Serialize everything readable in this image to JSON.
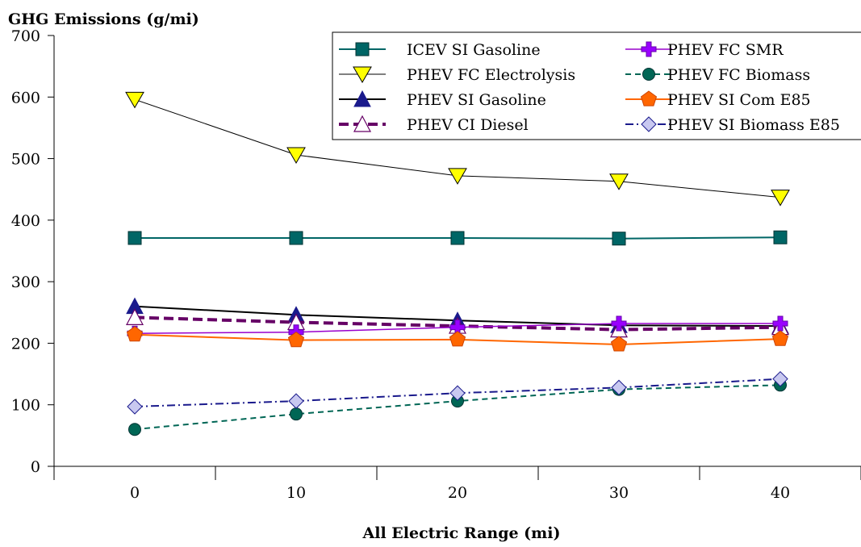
{
  "chart_data": {
    "type": "line",
    "title": "",
    "ylabel": "GHG Emissions (g/mi)",
    "xlabel": "All Electric Range (mi)",
    "x": [
      0,
      10,
      20,
      30,
      40
    ],
    "xticks": [
      "0",
      "10",
      "20",
      "30",
      "40"
    ],
    "ylim": [
      0,
      700
    ],
    "yticks": [
      "0",
      "100",
      "200",
      "300",
      "400",
      "500",
      "600",
      "700"
    ],
    "grid": false,
    "legend_position": "top-right",
    "series": [
      {
        "name": "ICEV SI Gasoline",
        "values": [
          371,
          371,
          371,
          370,
          372
        ],
        "color": "#006666",
        "marker": "square",
        "fill": "#006666",
        "dash": "",
        "width": 2
      },
      {
        "name": "PHEV FC Electrolysis",
        "values": [
          596,
          506,
          472,
          463,
          437
        ],
        "color": "#000000",
        "marker": "triangle-down",
        "fill": "#ffff00",
        "dash": "",
        "width": 1
      },
      {
        "name": "PHEV SI Gasoline",
        "values": [
          260,
          246,
          237,
          229,
          228
        ],
        "color": "#000000",
        "marker": "triangle-up",
        "fill": "#1a1a8c",
        "dash": "",
        "width": 2
      },
      {
        "name": "PHEV CI Diesel",
        "values": [
          242,
          234,
          228,
          222,
          226
        ],
        "color": "#660066",
        "marker": "triangle-up-open",
        "fill": "#ffffff",
        "dash": "12,6",
        "width": 4
      },
      {
        "name": "PHEV FC SMR",
        "values": [
          216,
          218,
          226,
          232,
          232
        ],
        "color": "#9900cc",
        "marker": "plus-square",
        "fill": "#9900ff",
        "dash": "",
        "width": 1.5
      },
      {
        "name": "PHEV FC Biomass",
        "values": [
          60,
          85,
          106,
          125,
          132
        ],
        "color": "#006655",
        "marker": "circle",
        "fill": "#006655",
        "dash": "7,5",
        "width": 2
      },
      {
        "name": "PHEV SI Com E85",
        "values": [
          214,
          205,
          206,
          198,
          207
        ],
        "color": "#ff6600",
        "marker": "pentagon",
        "fill": "#ff6600",
        "dash": "",
        "width": 2
      },
      {
        "name": "PHEV SI Biomass E85",
        "values": [
          97,
          106,
          119,
          128,
          142
        ],
        "color": "#1a1a8c",
        "marker": "diamond",
        "fill": "#c8c8f0",
        "dash": "10,4,2,4",
        "width": 2
      }
    ]
  }
}
